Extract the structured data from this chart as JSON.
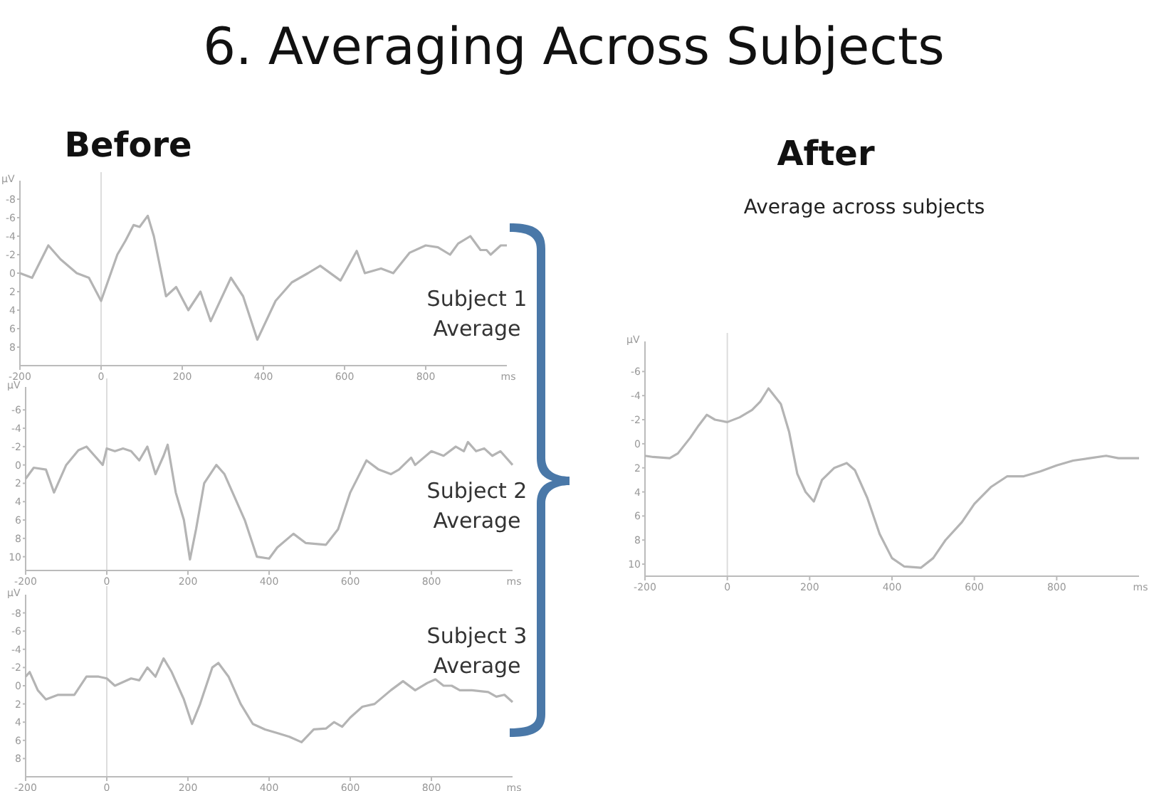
{
  "chart_data": [
    {
      "type": "line",
      "title": "6. Averaging Across Subjects",
      "subtitle": "Before",
      "xlabel": "ms",
      "ylabel": "µV",
      "annotations": [
        "Subject 1 Average"
      ],
      "xlim": [
        -200,
        1000
      ],
      "ylim": [
        10,
        -10
      ],
      "xticks": [
        -200,
        0,
        200,
        400,
        600,
        800
      ],
      "yticks": [
        -8,
        -6,
        -4,
        -2,
        0,
        2,
        4,
        6,
        8
      ],
      "ref_lines": [
        {
          "axis": "x",
          "value": 0,
          "color": "#dddddd"
        }
      ],
      "grid": false,
      "series": [
        {
          "color": "#b4b4b4",
          "x": [
            -200,
            -170,
            -130,
            -100,
            -60,
            -30,
            0,
            40,
            60,
            80,
            95,
            115,
            130,
            160,
            185,
            215,
            245,
            270,
            320,
            350,
            385,
            430,
            470,
            510,
            540,
            590,
            630,
            650,
            690,
            720,
            760,
            800,
            830,
            860,
            880,
            910,
            935,
            950,
            960,
            985,
            1000
          ],
          "values": [
            0,
            0.5,
            -3,
            -1.5,
            0,
            0.5,
            3,
            -2,
            -3.5,
            -5.2,
            -5,
            -6.2,
            -4,
            2.5,
            1.5,
            4,
            2,
            5.2,
            0.5,
            2.5,
            7.2,
            3,
            1,
            0,
            -0.8,
            0.8,
            -2.4,
            0,
            -0.5,
            0,
            -2.2,
            -3,
            -2.8,
            -2,
            -3.2,
            -4,
            -2.5,
            -2.5,
            -2,
            -3,
            -3
          ]
        }
      ]
    },
    {
      "type": "line",
      "xlabel": "ms",
      "ylabel": "µV",
      "annotations": [
        "Subject 2 Average"
      ],
      "xlim": [
        -200,
        1000
      ],
      "ylim": [
        11.5,
        -8.5
      ],
      "xticks": [
        -200,
        0,
        200,
        400,
        600,
        800
      ],
      "yticks": [
        -6,
        -4,
        -2,
        0,
        2,
        4,
        6,
        8,
        10
      ],
      "ref_lines": [
        {
          "axis": "x",
          "value": 0,
          "color": "#dddddd"
        }
      ],
      "grid": false,
      "series": [
        {
          "color": "#b4b4b4",
          "x": [
            -200,
            -180,
            -150,
            -130,
            -100,
            -70,
            -50,
            -30,
            -10,
            0,
            20,
            40,
            60,
            80,
            100,
            120,
            140,
            150,
            170,
            190,
            205,
            220,
            240,
            270,
            290,
            310,
            340,
            370,
            400,
            420,
            460,
            490,
            540,
            570,
            600,
            640,
            670,
            700,
            720,
            750,
            760,
            800,
            830,
            860,
            880,
            890,
            910,
            930,
            950,
            970,
            1000
          ],
          "values": [
            1.5,
            0.3,
            0.5,
            3,
            0,
            -1.6,
            -2,
            -1,
            0,
            -1.8,
            -1.5,
            -1.8,
            -1.5,
            -0.5,
            -2,
            1,
            -1,
            -2.2,
            3,
            6,
            10.3,
            7,
            2,
            0,
            1,
            3,
            6,
            10,
            10.2,
            9,
            7.5,
            8.5,
            8.7,
            7,
            3,
            -0.5,
            0.5,
            1,
            0.5,
            -0.8,
            0,
            -1.5,
            -1,
            -2,
            -1.5,
            -2.5,
            -1.5,
            -1.8,
            -1,
            -1.5,
            0
          ]
        }
      ]
    },
    {
      "type": "line",
      "xlabel": "ms",
      "ylabel": "µV",
      "annotations": [
        "Subject 3 Average"
      ],
      "xlim": [
        -200,
        1000
      ],
      "ylim": [
        10,
        -10
      ],
      "xticks": [
        -200,
        0,
        200,
        400,
        600,
        800
      ],
      "yticks": [
        -8,
        -6,
        -4,
        -2,
        0,
        2,
        4,
        6,
        8
      ],
      "ref_lines": [
        {
          "axis": "x",
          "value": 0,
          "color": "#dddddd"
        }
      ],
      "grid": false,
      "series": [
        {
          "color": "#b4b4b4",
          "x": [
            -200,
            -190,
            -170,
            -150,
            -120,
            -80,
            -50,
            -20,
            0,
            20,
            60,
            80,
            100,
            120,
            140,
            160,
            190,
            210,
            230,
            260,
            275,
            300,
            330,
            360,
            390,
            420,
            450,
            480,
            510,
            540,
            560,
            580,
            600,
            630,
            660,
            700,
            730,
            760,
            790,
            810,
            830,
            850,
            870,
            900,
            940,
            960,
            980,
            1000
          ],
          "values": [
            -1,
            -1.5,
            0.5,
            1.5,
            1,
            1,
            -1,
            -1,
            -0.8,
            0,
            -0.8,
            -0.6,
            -2,
            -1,
            -3,
            -1.5,
            1.5,
            4.2,
            2,
            -2,
            -2.5,
            -1,
            2,
            4.2,
            4.8,
            5.2,
            5.6,
            6.2,
            4.8,
            4.7,
            4,
            4.5,
            3.5,
            2.3,
            2,
            0.5,
            -0.5,
            0.5,
            -0.3,
            -0.7,
            0,
            0,
            0.5,
            0.5,
            0.7,
            1.2,
            1,
            1.8
          ]
        }
      ]
    },
    {
      "type": "line",
      "title": "After",
      "subtitle": "Average across subjects",
      "xlabel": "ms",
      "ylabel": "µV",
      "xlim": [
        -200,
        1000
      ],
      "ylim": [
        11,
        -8.5
      ],
      "xticks": [
        -200,
        0,
        200,
        400,
        600,
        800
      ],
      "yticks": [
        -6,
        -4,
        -2,
        0,
        2,
        4,
        6,
        8,
        10
      ],
      "ref_lines": [
        {
          "axis": "x",
          "value": 0,
          "color": "#dddddd"
        }
      ],
      "grid": false,
      "series": [
        {
          "color": "#b4b4b4",
          "x": [
            -200,
            -180,
            -140,
            -120,
            -90,
            -70,
            -50,
            -30,
            0,
            30,
            60,
            80,
            100,
            130,
            150,
            170,
            190,
            210,
            230,
            260,
            290,
            310,
            340,
            370,
            400,
            430,
            470,
            500,
            530,
            570,
            600,
            640,
            680,
            720,
            760,
            800,
            840,
            880,
            920,
            950,
            1000
          ],
          "values": [
            1,
            1.1,
            1.2,
            0.8,
            -0.5,
            -1.5,
            -2.4,
            -2,
            -1.8,
            -2.2,
            -2.8,
            -3.5,
            -4.6,
            -3.3,
            -1,
            2.5,
            4,
            4.8,
            3,
            2,
            1.6,
            2.2,
            4.5,
            7.5,
            9.5,
            10.2,
            10.3,
            9.5,
            8,
            6.5,
            5,
            3.6,
            2.7,
            2.7,
            2.3,
            1.8,
            1.4,
            1.2,
            1,
            1.2,
            1.2
          ]
        }
      ]
    }
  ]
}
